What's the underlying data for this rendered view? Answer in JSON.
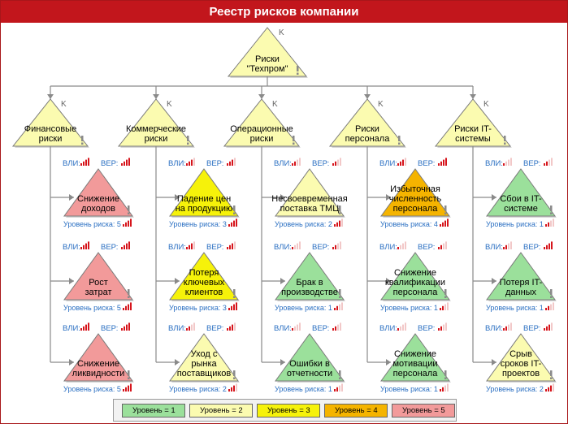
{
  "title": "Реестр рисков компании",
  "labels": {
    "vli": "ВЛИ:",
    "ver": "ВЕР:",
    "level_prefix": "Уровень риска: ",
    "k": "K"
  },
  "level_colors": {
    "1": "#9be09b",
    "2": "#fbfbb0",
    "3": "#f6f20a",
    "4": "#f5b400",
    "5": "#f29a9a"
  },
  "bar_colors": {
    "on": "#d6141b",
    "off": "#f2c8c8"
  },
  "root": {
    "lines": [
      "Риски",
      "\"Техпром\""
    ],
    "color": "#fbfbb0"
  },
  "categories": [
    {
      "lines": [
        "Финансовые",
        "риски"
      ],
      "color": "#fbfbb0",
      "risks": [
        {
          "lines": [
            "Снижение",
            "доходов"
          ],
          "level": 5,
          "vli": 4,
          "ver": 4
        },
        {
          "lines": [
            "Рост",
            "затрат"
          ],
          "level": 5,
          "vli": 4,
          "ver": 4
        },
        {
          "lines": [
            "Снижение",
            "ликвидности"
          ],
          "level": 5,
          "vli": 4,
          "ver": 4
        }
      ]
    },
    {
      "lines": [
        "Коммерческие",
        "риски"
      ],
      "color": "#fbfbb0",
      "risks": [
        {
          "lines": [
            "Падение цен",
            "на продукцию"
          ],
          "level": 3,
          "vli": 3,
          "ver": 3
        },
        {
          "lines": [
            "Потеря",
            "ключевых",
            "клиентов"
          ],
          "level": 3,
          "vli": 3,
          "ver": 3
        },
        {
          "lines": [
            "Уход с",
            "рынка",
            "поставщиков"
          ],
          "level": 2,
          "vli": 2,
          "ver": 3
        }
      ]
    },
    {
      "lines": [
        "Операционные",
        "риски"
      ],
      "color": "#fbfbb0",
      "risks": [
        {
          "lines": [
            "Несвоевременная",
            "поставка ТМЦ"
          ],
          "level": 2,
          "vli": 2,
          "ver": 2
        },
        {
          "lines": [
            "Брак в",
            "производстве"
          ],
          "level": 1,
          "vli": 1,
          "ver": 2
        },
        {
          "lines": [
            "Ошибки в",
            "отчетности"
          ],
          "level": 1,
          "vli": 1,
          "ver": 2
        }
      ]
    },
    {
      "lines": [
        "Риски",
        "персонала"
      ],
      "color": "#fbfbb0",
      "risks": [
        {
          "lines": [
            "Избыточная",
            "численность",
            "персонала"
          ],
          "level": 4,
          "vli": 3,
          "ver": 4
        },
        {
          "lines": [
            "Снижение",
            "квалификации",
            "персонала"
          ],
          "level": 1,
          "vli": 1,
          "ver": 2
        },
        {
          "lines": [
            "Снижение",
            "мотивации",
            "персонала"
          ],
          "level": 1,
          "vli": 1,
          "ver": 2
        }
      ]
    },
    {
      "lines": [
        "Риски IT-",
        "системы"
      ],
      "color": "#fbfbb0",
      "risks": [
        {
          "lines": [
            "Сбои в IT-",
            "системе"
          ],
          "level": 1,
          "vli": 1,
          "ver": 2
        },
        {
          "lines": [
            "Потеря IT-",
            "данных"
          ],
          "level": 1,
          "vli": 2,
          "ver": 4
        },
        {
          "lines": [
            "Срыв",
            "сроков IT-",
            "проектов"
          ],
          "level": 2,
          "vli": 2,
          "ver": 3
        }
      ]
    }
  ],
  "legend": [
    {
      "label": "Уровень = 1",
      "level": "1"
    },
    {
      "label": "Уровень = 2",
      "level": "2"
    },
    {
      "label": "Уровень = 3",
      "level": "3"
    },
    {
      "label": "Уровень = 4",
      "level": "4"
    },
    {
      "label": "Уровень = 5",
      "level": "5"
    }
  ]
}
